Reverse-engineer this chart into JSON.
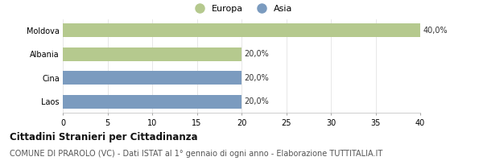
{
  "categories": [
    "Moldova",
    "Albania",
    "Cina",
    "Laos"
  ],
  "values": [
    40.0,
    20.0,
    20.0,
    20.0
  ],
  "colors": [
    "#b5c98e",
    "#b5c98e",
    "#7b9bbf",
    "#7b9bbf"
  ],
  "bar_labels": [
    "40,0%",
    "20,0%",
    "20,0%",
    "20,0%"
  ],
  "xlim": [
    0,
    40
  ],
  "xticks": [
    0,
    5,
    10,
    15,
    20,
    25,
    30,
    35,
    40
  ],
  "legend_entries": [
    "Europa",
    "Asia"
  ],
  "legend_colors": [
    "#b5c98e",
    "#7b9bbf"
  ],
  "title": "Cittadini Stranieri per Cittadinanza",
  "subtitle": "COMUNE DI PRAROLO (VC) - Dati ISTAT al 1° gennaio di ogni anno - Elaborazione TUTTITALIA.IT",
  "background_color": "#ffffff",
  "plot_bg_color": "#ffffff",
  "title_fontsize": 8.5,
  "subtitle_fontsize": 7,
  "label_fontsize": 7,
  "tick_fontsize": 7,
  "legend_fontsize": 8
}
